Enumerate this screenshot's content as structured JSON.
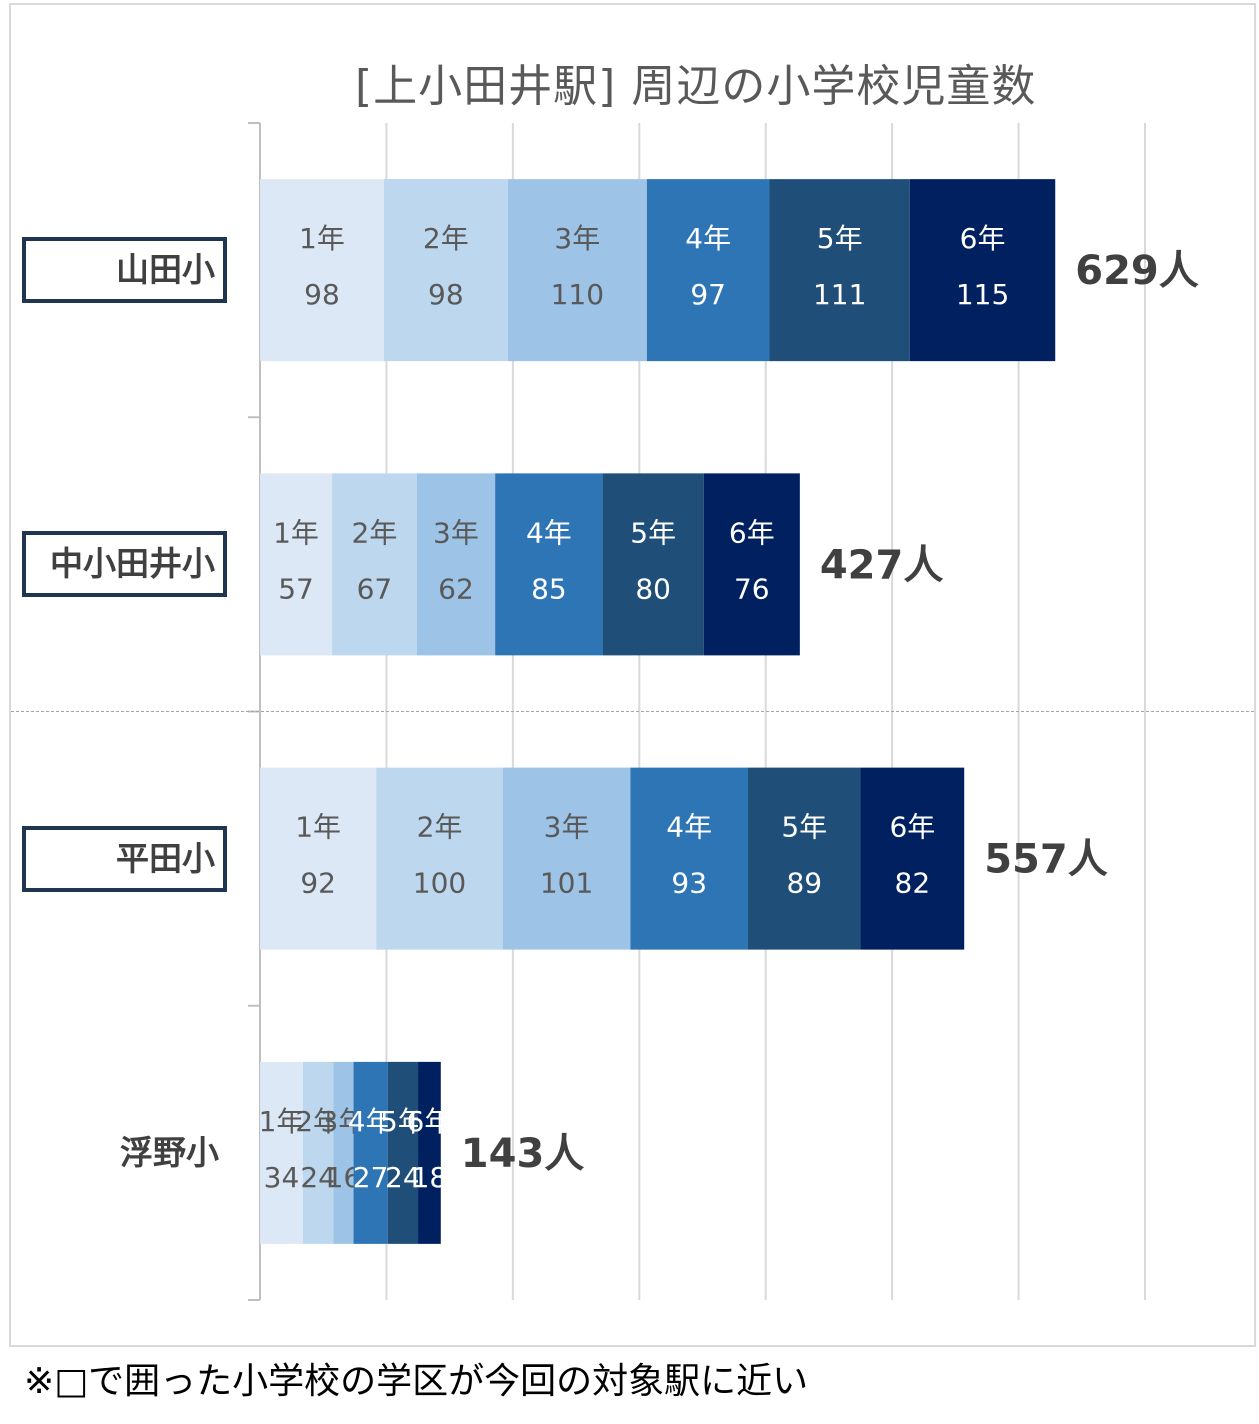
{
  "chart_data": {
    "type": "bar",
    "orientation": "horizontal",
    "stacked": true,
    "title": "[上小田井駅] 周辺の小学校児童数",
    "categories": [
      "山田小",
      "中小田井小",
      "平田小",
      "浮野小"
    ],
    "boxed_categories": [
      "山田小",
      "中小田井小",
      "平田小"
    ],
    "series": [
      {
        "name": "1年",
        "color": "#dde8f6",
        "text_color": "#595959",
        "values": [
          98,
          57,
          92,
          34
        ]
      },
      {
        "name": "2年",
        "color": "#bdd7ee",
        "text_color": "#595959",
        "values": [
          98,
          67,
          100,
          24
        ]
      },
      {
        "name": "3年",
        "color": "#9dc3e6",
        "text_color": "#595959",
        "values": [
          110,
          62,
          101,
          16
        ]
      },
      {
        "name": "4年",
        "color": "#2e75b6",
        "text_color": "#ffffff",
        "values": [
          97,
          85,
          93,
          27
        ]
      },
      {
        "name": "5年",
        "color": "#1f4e79",
        "text_color": "#ffffff",
        "values": [
          111,
          80,
          89,
          24
        ]
      },
      {
        "name": "6年",
        "color": "#002060",
        "text_color": "#ffffff",
        "values": [
          115,
          76,
          82,
          18
        ]
      }
    ],
    "totals": [
      "629人",
      "427人",
      "557人",
      "143人"
    ],
    "xlim": [
      0,
      700
    ],
    "grid": true
  },
  "footnote": "※□で囲った小学校の学区が今回の対象駅に近い"
}
